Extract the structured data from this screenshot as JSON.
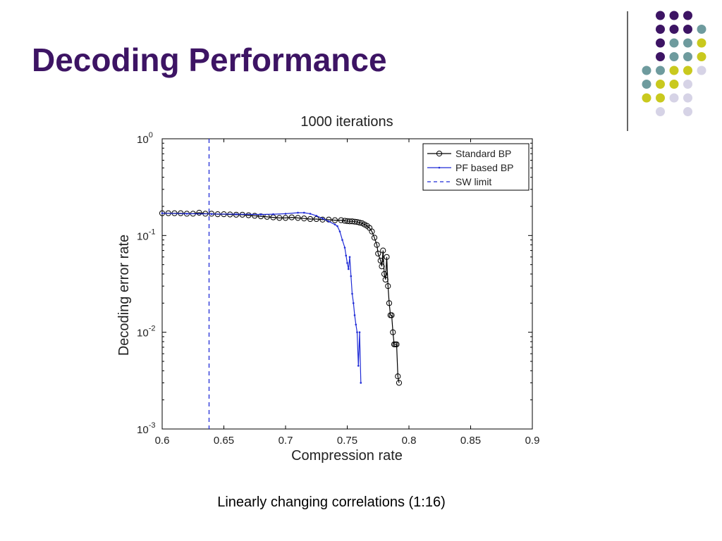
{
  "slide": {
    "title": "Decoding Performance",
    "caption": "Linearly changing correlations (1:16)",
    "dot_palette": [
      "#3d1464",
      "#6e9b9e",
      "#c9c91e",
      "#d6d3e6"
    ]
  },
  "chart_data": {
    "type": "line",
    "title": "1000 iterations",
    "xlabel": "Compression rate",
    "ylabel": "Decoding error rate",
    "xlim": [
      0.6,
      0.9
    ],
    "ylim": [
      0.001,
      1
    ],
    "yscale": "log",
    "xticks": [
      "0.6",
      "0.65",
      "0.7",
      "0.75",
      "0.8",
      "0.85",
      "0.9"
    ],
    "yticks": [
      {
        "base": "10",
        "exp": "0"
      },
      {
        "base": "10",
        "exp": "-1"
      },
      {
        "base": "10",
        "exp": "-2"
      },
      {
        "base": "10",
        "exp": "-3"
      }
    ],
    "legend_position": "top-right",
    "grid": false,
    "series": [
      {
        "name": "Standard BP",
        "color": "#000000",
        "marker": "circle",
        "points": [
          [
            0.6,
            0.17
          ],
          [
            0.605,
            0.17
          ],
          [
            0.61,
            0.17
          ],
          [
            0.615,
            0.17
          ],
          [
            0.62,
            0.168
          ],
          [
            0.625,
            0.168
          ],
          [
            0.63,
            0.172
          ],
          [
            0.635,
            0.168
          ],
          [
            0.64,
            0.168
          ],
          [
            0.645,
            0.166
          ],
          [
            0.65,
            0.166
          ],
          [
            0.655,
            0.165
          ],
          [
            0.66,
            0.164
          ],
          [
            0.665,
            0.164
          ],
          [
            0.67,
            0.162
          ],
          [
            0.675,
            0.16
          ],
          [
            0.68,
            0.158
          ],
          [
            0.685,
            0.156
          ],
          [
            0.69,
            0.154
          ],
          [
            0.695,
            0.152
          ],
          [
            0.7,
            0.152
          ],
          [
            0.705,
            0.154
          ],
          [
            0.71,
            0.152
          ],
          [
            0.715,
            0.15
          ],
          [
            0.72,
            0.148
          ],
          [
            0.725,
            0.148
          ],
          [
            0.73,
            0.146
          ],
          [
            0.735,
            0.146
          ],
          [
            0.74,
            0.144
          ],
          [
            0.745,
            0.144
          ],
          [
            0.748,
            0.142
          ],
          [
            0.75,
            0.141
          ],
          [
            0.752,
            0.14
          ],
          [
            0.754,
            0.14
          ],
          [
            0.756,
            0.139
          ],
          [
            0.758,
            0.138
          ],
          [
            0.76,
            0.136
          ],
          [
            0.762,
            0.134
          ],
          [
            0.764,
            0.13
          ],
          [
            0.766,
            0.126
          ],
          [
            0.768,
            0.12
          ],
          [
            0.77,
            0.11
          ],
          [
            0.772,
            0.095
          ],
          [
            0.774,
            0.08
          ],
          [
            0.775,
            0.065
          ],
          [
            0.777,
            0.055
          ],
          [
            0.778,
            0.048
          ],
          [
            0.779,
            0.07
          ],
          [
            0.78,
            0.04
          ],
          [
            0.781,
            0.035
          ],
          [
            0.782,
            0.06
          ],
          [
            0.783,
            0.03
          ],
          [
            0.784,
            0.02
          ],
          [
            0.785,
            0.015
          ],
          [
            0.786,
            0.015
          ],
          [
            0.787,
            0.01
          ],
          [
            0.788,
            0.0075
          ],
          [
            0.789,
            0.0075
          ],
          [
            0.79,
            0.0075
          ],
          [
            0.791,
            0.0035
          ],
          [
            0.792,
            0.003
          ]
        ]
      },
      {
        "name": "PF based BP",
        "color": "#1f2bd6",
        "marker": "dot",
        "points": [
          [
            0.6,
            0.17
          ],
          [
            0.62,
            0.168
          ],
          [
            0.64,
            0.167
          ],
          [
            0.66,
            0.166
          ],
          [
            0.68,
            0.165
          ],
          [
            0.69,
            0.166
          ],
          [
            0.7,
            0.168
          ],
          [
            0.71,
            0.172
          ],
          [
            0.715,
            0.172
          ],
          [
            0.72,
            0.168
          ],
          [
            0.725,
            0.16
          ],
          [
            0.73,
            0.15
          ],
          [
            0.735,
            0.14
          ],
          [
            0.74,
            0.13
          ],
          [
            0.742,
            0.125
          ],
          [
            0.744,
            0.11
          ],
          [
            0.746,
            0.09
          ],
          [
            0.748,
            0.075
          ],
          [
            0.749,
            0.062
          ],
          [
            0.75,
            0.052
          ],
          [
            0.751,
            0.045
          ],
          [
            0.752,
            0.06
          ],
          [
            0.753,
            0.038
          ],
          [
            0.754,
            0.025
          ],
          [
            0.755,
            0.02
          ],
          [
            0.756,
            0.015
          ],
          [
            0.757,
            0.012
          ],
          [
            0.758,
            0.01
          ],
          [
            0.759,
            0.0045
          ],
          [
            0.76,
            0.01
          ],
          [
            0.761,
            0.003
          ]
        ]
      },
      {
        "name": "SW limit",
        "color": "#1f2bd6",
        "style": "dashed",
        "x": 0.638
      }
    ]
  }
}
